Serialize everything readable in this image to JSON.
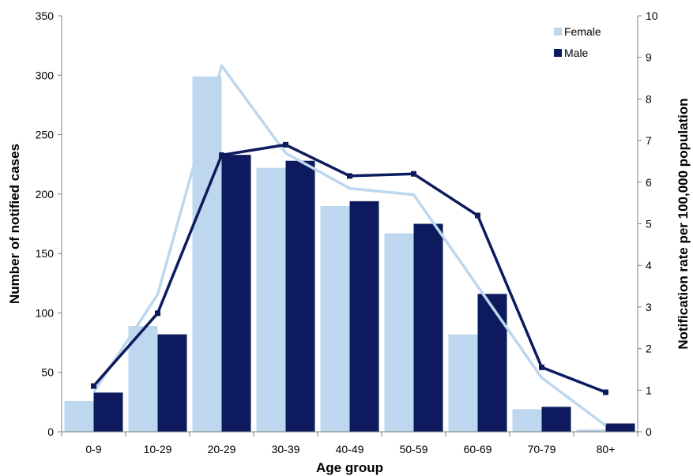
{
  "chart_data": {
    "type": "bar",
    "categories": [
      "0-9",
      "10-29",
      "20-29",
      "30-39",
      "40-49",
      "50-59",
      "60-69",
      "70-79",
      "80+"
    ],
    "xlabel": "Age group",
    "ylabel": "Number of notified cases",
    "y2label": "Notification rate per 100,000 population",
    "ylim": [
      0,
      350
    ],
    "y2lim": [
      0,
      10
    ],
    "yticks": [
      "0",
      "50",
      "100",
      "150",
      "200",
      "250",
      "300",
      "350"
    ],
    "y2ticks": [
      "0",
      "1",
      "2",
      "3",
      "4",
      "5",
      "6",
      "7",
      "8",
      "9",
      "10"
    ],
    "legend_position": "top-right",
    "grid": false,
    "series": [
      {
        "name": "Female",
        "kind": "bar",
        "axis": "left",
        "color": "#bdd7ee",
        "values": [
          26,
          89,
          299,
          222,
          190,
          167,
          82,
          19,
          2
        ]
      },
      {
        "name": "Male",
        "kind": "bar",
        "axis": "left",
        "color": "#0d1b5e",
        "values": [
          33,
          82,
          233,
          228,
          194,
          175,
          116,
          21,
          7
        ]
      },
      {
        "kind": "line",
        "axis": "right",
        "color": "#bdd7ee",
        "values": [
          0.95,
          3.3,
          8.8,
          6.7,
          5.85,
          5.7,
          3.5,
          1.3,
          0.15
        ]
      },
      {
        "kind": "line",
        "axis": "right",
        "color": "#0d1b5e",
        "marker": "square",
        "values": [
          1.1,
          2.85,
          6.65,
          6.9,
          6.15,
          6.2,
          5.2,
          1.55,
          0.95
        ]
      }
    ]
  }
}
